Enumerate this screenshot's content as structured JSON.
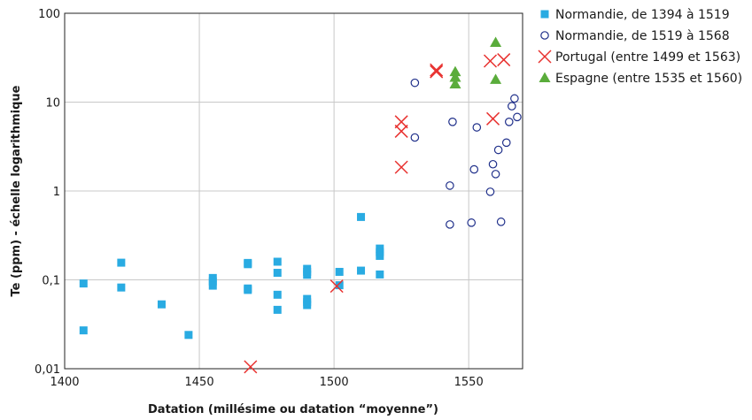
{
  "chart_data": {
    "type": "scatter",
    "xlabel": "Datation (millésime ou datation “moyenne”)",
    "ylabel": "Te (ppm) - échelle logarithmique",
    "xlim": [
      1400,
      1570
    ],
    "ylim": [
      0.01,
      100
    ],
    "yscale": "log",
    "grid": true,
    "legend_position": "right",
    "x_ticks": [
      "1400",
      "1450",
      "1500",
      "1550"
    ],
    "x_tick_values": [
      1400,
      1450,
      1500,
      1550
    ],
    "y_ticks": [
      "0,01",
      "0,1",
      "1",
      "10",
      "100"
    ],
    "y_tick_values": [
      0.01,
      0.1,
      1,
      10,
      100
    ],
    "series": [
      {
        "name": "Normandie, de 1394 à 1519",
        "marker": "square",
        "color": "#29abe2",
        "points": [
          [
            1407,
            0.091
          ],
          [
            1407,
            0.027
          ],
          [
            1421,
            0.156
          ],
          [
            1421,
            0.082
          ],
          [
            1436,
            0.053
          ],
          [
            1446,
            0.024
          ],
          [
            1455,
            0.105
          ],
          [
            1455,
            0.096
          ],
          [
            1455,
            0.086
          ],
          [
            1468,
            0.155
          ],
          [
            1468,
            0.15
          ],
          [
            1468,
            0.08
          ],
          [
            1468,
            0.077
          ],
          [
            1479,
            0.16
          ],
          [
            1479,
            0.12
          ],
          [
            1479,
            0.068
          ],
          [
            1479,
            0.046
          ],
          [
            1490,
            0.133
          ],
          [
            1490,
            0.123
          ],
          [
            1490,
            0.114
          ],
          [
            1490,
            0.061
          ],
          [
            1490,
            0.056
          ],
          [
            1490,
            0.052
          ],
          [
            1502,
            0.123
          ],
          [
            1502,
            0.087
          ],
          [
            1510,
            0.51
          ],
          [
            1510,
            0.127
          ],
          [
            1517,
            0.225
          ],
          [
            1517,
            0.205
          ],
          [
            1517,
            0.186
          ],
          [
            1517,
            0.115
          ]
        ]
      },
      {
        "name": "Normandie, de 1519 à 1568",
        "marker": "circle",
        "color": "#1f2f8a",
        "points": [
          [
            1530,
            16.5
          ],
          [
            1530,
            4.0
          ],
          [
            1543,
            1.15
          ],
          [
            1543,
            0.42
          ],
          [
            1544,
            6.0
          ],
          [
            1551,
            0.44
          ],
          [
            1552,
            1.75
          ],
          [
            1553,
            5.2
          ],
          [
            1558,
            0.98
          ],
          [
            1559,
            2.0
          ],
          [
            1560,
            1.55
          ],
          [
            1561,
            2.9
          ],
          [
            1562,
            0.45
          ],
          [
            1564,
            3.5
          ],
          [
            1565,
            6.0
          ],
          [
            1566,
            9.0
          ],
          [
            1567,
            11.0
          ],
          [
            1568,
            6.8
          ]
        ]
      },
      {
        "name": "Portugal (entre 1499 et 1563)",
        "marker": "x",
        "color": "#e8312f",
        "points": [
          [
            1469,
            0.0105
          ],
          [
            1501,
            0.085
          ],
          [
            1525,
            6.0
          ],
          [
            1525,
            4.7
          ],
          [
            1525,
            1.85
          ],
          [
            1538,
            23.0
          ],
          [
            1538,
            22.0
          ],
          [
            1558,
            29.0
          ],
          [
            1559,
            6.5
          ],
          [
            1563,
            30.0
          ]
        ]
      },
      {
        "name": "Espagne (entre 1535 et 1560)",
        "marker": "triangle",
        "color": "#5aac3b",
        "points": [
          [
            1545,
            22.0
          ],
          [
            1545,
            19.0
          ],
          [
            1545,
            16.0
          ],
          [
            1560,
            47.0
          ],
          [
            1560,
            18.0
          ]
        ]
      }
    ]
  }
}
